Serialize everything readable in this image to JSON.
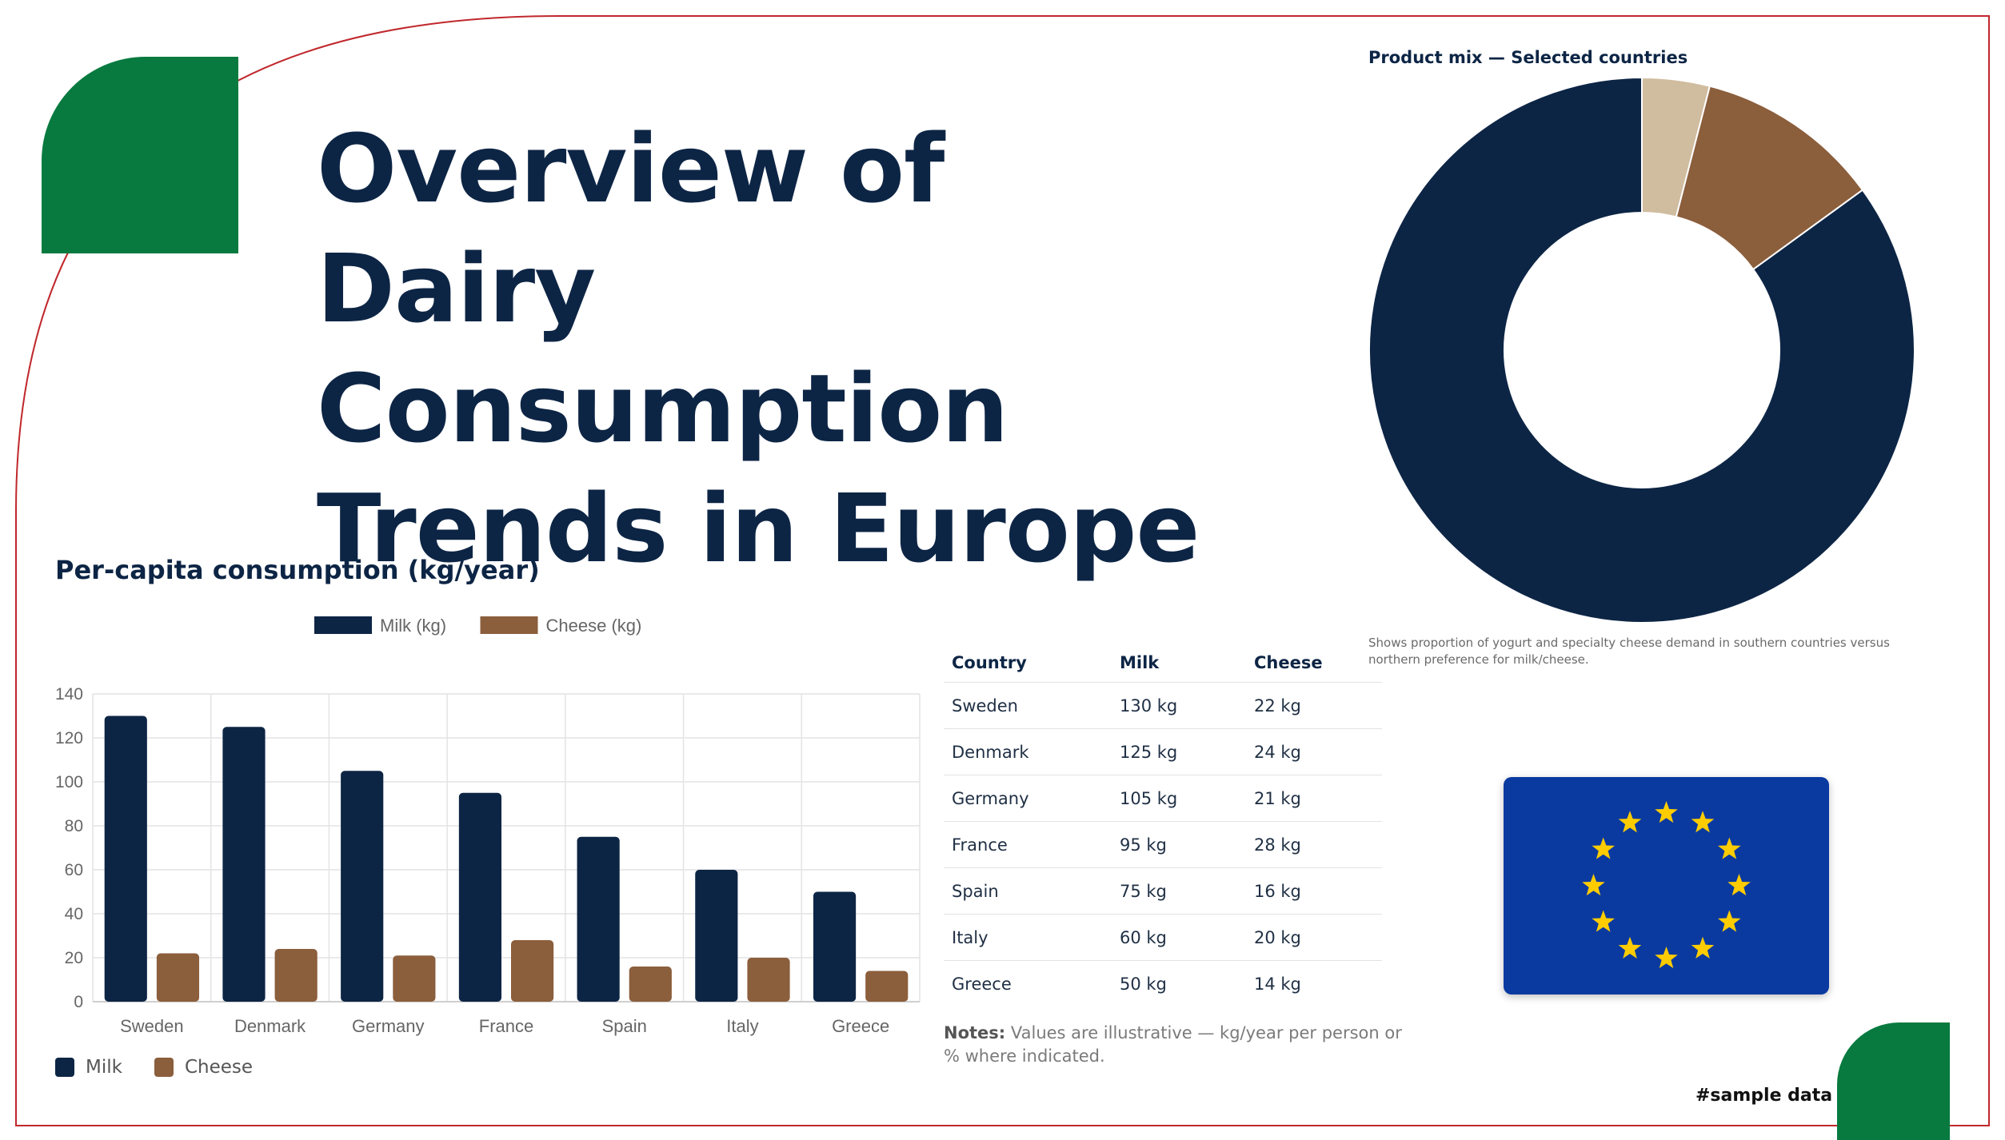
{
  "title_lines": [
    "Overview of Dairy",
    "Consumption",
    "Trends in Europe"
  ],
  "bar_chart_title": "Per-capita consumption (kg/year)",
  "donut_title": "Product mix — Selected countries",
  "donut_note": "Shows proportion of yogurt and specialty cheese demand in southern countries versus northern preference for milk/cheese.",
  "bottom_legend": {
    "milk": "Milk",
    "cheese": "Cheese"
  },
  "table": {
    "headers": [
      "Country",
      "Milk",
      "Cheese"
    ],
    "rows": [
      [
        "Sweden",
        "130 kg",
        "22 kg"
      ],
      [
        "Denmark",
        "125 kg",
        "24 kg"
      ],
      [
        "Germany",
        "105 kg",
        "21 kg"
      ],
      [
        "France",
        "95 kg",
        "28 kg"
      ],
      [
        "Spain",
        "75 kg",
        "16 kg"
      ],
      [
        "Italy",
        "60 kg",
        "20 kg"
      ],
      [
        "Greece",
        "50 kg",
        "14 kg"
      ]
    ]
  },
  "notes": {
    "label": "Notes:",
    "text": "Values are illustrative — kg/year per person or % where indicated."
  },
  "sample_label": "#sample data",
  "colors": {
    "milk": "#0d2545",
    "cheese": "#8b5e3c",
    "light": "#d0bc9f",
    "accent_green": "#087a3f",
    "frame_red": "#c0282d",
    "flag_blue": "#0a3aa0",
    "flag_star": "#ffcc00"
  },
  "icons": {
    "flag": "eu-flag-icon"
  },
  "chart_data": [
    {
      "type": "bar",
      "title": "Per-capita consumption (kg/year)",
      "categories": [
        "Sweden",
        "Denmark",
        "Germany",
        "France",
        "Spain",
        "Italy",
        "Greece"
      ],
      "series": [
        {
          "name": "Milk (kg)",
          "values": [
            130,
            125,
            105,
            95,
            75,
            60,
            50
          ]
        },
        {
          "name": "Cheese (kg)",
          "values": [
            22,
            24,
            21,
            28,
            16,
            20,
            14
          ]
        }
      ],
      "ylim": [
        0,
        140
      ],
      "yticks": [
        0,
        20,
        40,
        60,
        80,
        100,
        120,
        140
      ],
      "grid": true,
      "legend": "top-center"
    },
    {
      "type": "pie",
      "title": "Product mix — Selected countries",
      "donut": true,
      "values": [
        85,
        11,
        4
      ],
      "colors": [
        "#0d2545",
        "#8b5e3c",
        "#d0bc9f"
      ]
    }
  ]
}
